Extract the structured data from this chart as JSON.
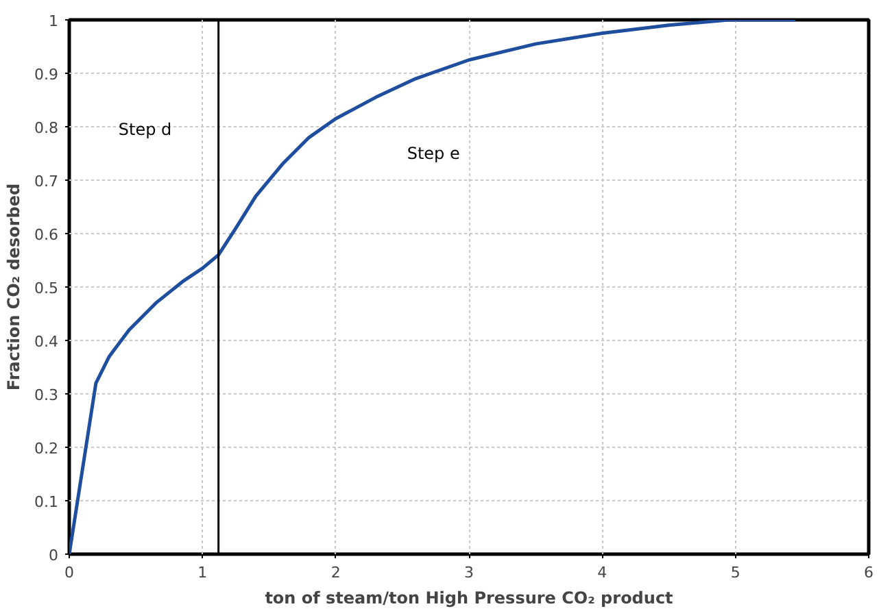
{
  "chart_data": {
    "type": "line",
    "xlabel": "ton of steam/ton High Pressure CO₂ product",
    "ylabel": "Fraction CO₂ desorbed",
    "xlim": [
      0,
      6
    ],
    "ylim": [
      0,
      1
    ],
    "xticks": [
      0,
      1,
      2,
      3,
      4,
      5,
      6
    ],
    "yticks": [
      0,
      0.1,
      0.2,
      0.3,
      0.4,
      0.5,
      0.6,
      0.7,
      0.8,
      0.9,
      1
    ],
    "grid": true,
    "marker": "none",
    "line_style": "solid",
    "series": [
      {
        "color": "#1f4e9e",
        "x": [
          0,
          0.2,
          0.3,
          0.45,
          0.65,
          0.85,
          1.0,
          1.12,
          1.25,
          1.4,
          1.6,
          1.8,
          2.0,
          2.3,
          2.6,
          3.0,
          3.5,
          4.0,
          4.5,
          4.95,
          5.45
        ],
        "values": [
          0,
          0.32,
          0.37,
          0.42,
          0.47,
          0.51,
          0.535,
          0.56,
          0.61,
          0.67,
          0.73,
          0.78,
          0.815,
          0.855,
          0.89,
          0.925,
          0.955,
          0.975,
          0.99,
          1.0,
          1.0
        ]
      }
    ],
    "ref_lines": [
      {
        "axis": "x",
        "value": 1.12,
        "color": "#000000",
        "line_style": "solid"
      }
    ],
    "annotations": [
      "Step d",
      "Step e"
    ]
  }
}
